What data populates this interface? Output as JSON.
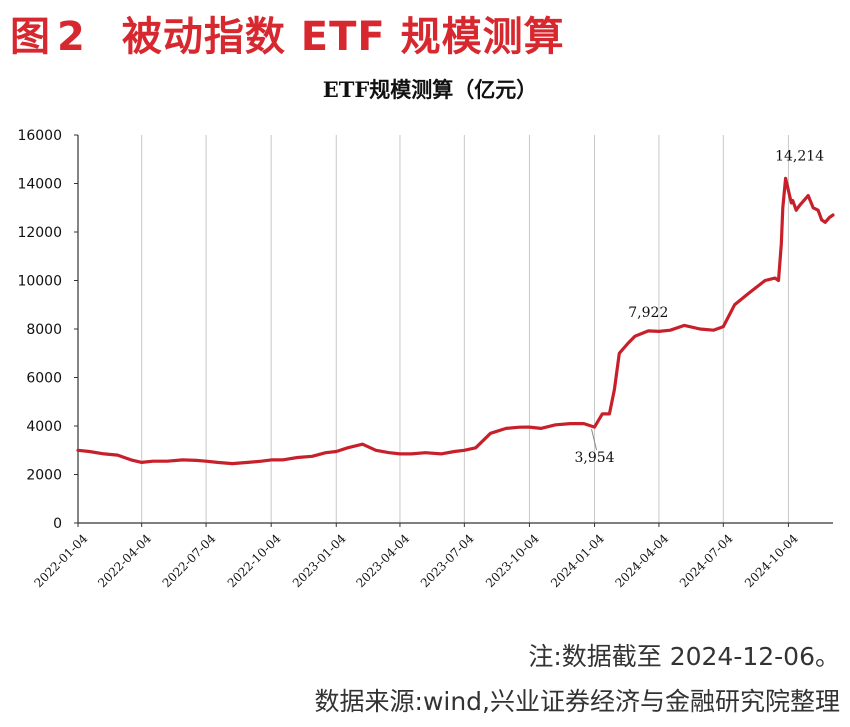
{
  "figure": {
    "label": "图",
    "number": "2",
    "title": "被动指数 ETF 规模测算"
  },
  "note": "注:数据截至 2024-12-06。",
  "source": "数据来源:wind,兴业证券经济与金融研究院整理",
  "chart_data": {
    "type": "line",
    "title": "ETF规模测算（亿元）",
    "xlabel": "",
    "ylabel": "",
    "ylim": [
      0,
      16000
    ],
    "yticks": [
      "0",
      "2000",
      "4000",
      "6000",
      "8000",
      "10000",
      "12000",
      "14000",
      "16000"
    ],
    "x_tick_labels": [
      "2022-01-04",
      "2022-04-04",
      "2022-07-04",
      "2022-10-04",
      "2023-01-04",
      "2023-04-04",
      "2023-07-04",
      "2023-10-04",
      "2024-01-04",
      "2024-04-04",
      "2024-07-04",
      "2024-10-04"
    ],
    "xlim": [
      "2022-01-04",
      "2024-12-06"
    ],
    "grid": "vertical",
    "line_color": "#c8202b",
    "series": [
      {
        "x": [
          "2022-01-04",
          "2022-01-20",
          "2022-02-10",
          "2022-03-01",
          "2022-03-20",
          "2022-04-04",
          "2022-04-20",
          "2022-05-10",
          "2022-06-01",
          "2022-06-20",
          "2022-07-04",
          "2022-07-20",
          "2022-08-10",
          "2022-09-01",
          "2022-09-20",
          "2022-10-04",
          "2022-10-20",
          "2022-11-10",
          "2022-12-01",
          "2022-12-20",
          "2023-01-04",
          "2023-01-20",
          "2023-02-10",
          "2023-03-01",
          "2023-03-20",
          "2023-04-04",
          "2023-04-20",
          "2023-05-10",
          "2023-06-01",
          "2023-06-20",
          "2023-07-04",
          "2023-07-20",
          "2023-08-10",
          "2023-09-01",
          "2023-09-20",
          "2023-10-04",
          "2023-10-20",
          "2023-11-10",
          "2023-12-01",
          "2023-12-20",
          "2024-01-04",
          "2024-01-15",
          "2024-01-25",
          "2024-02-01",
          "2024-02-08",
          "2024-02-20",
          "2024-03-01",
          "2024-03-20",
          "2024-04-04",
          "2024-04-20",
          "2024-05-10",
          "2024-06-01",
          "2024-06-20",
          "2024-07-04",
          "2024-07-20",
          "2024-08-10",
          "2024-09-01",
          "2024-09-15",
          "2024-09-20",
          "2024-09-24",
          "2024-09-26",
          "2024-09-30",
          "2024-10-08",
          "2024-10-10",
          "2024-10-15",
          "2024-10-20",
          "2024-11-01",
          "2024-11-08",
          "2024-11-15",
          "2024-11-20",
          "2024-11-25",
          "2024-12-01",
          "2024-12-06"
        ],
        "values": [
          3000,
          2950,
          2850,
          2800,
          2600,
          2500,
          2550,
          2550,
          2600,
          2580,
          2550,
          2500,
          2450,
          2500,
          2550,
          2600,
          2600,
          2700,
          2750,
          2900,
          2950,
          3100,
          3250,
          3000,
          2900,
          2850,
          2850,
          2900,
          2850,
          2950,
          3000,
          3100,
          3700,
          3900,
          3950,
          3954,
          3900,
          4050,
          4100,
          4100,
          3954,
          4500,
          4500,
          5500,
          7000,
          7400,
          7700,
          7922,
          7900,
          7950,
          8150,
          8000,
          7950,
          8100,
          9000,
          9500,
          10000,
          10100,
          10000,
          11500,
          13000,
          14214,
          13200,
          13300,
          12900,
          13100,
          13500,
          13000,
          12900,
          12500,
          12400,
          12600,
          12700
        ]
      }
    ],
    "annotations": [
      {
        "x": "2024-01-04",
        "y": 3954,
        "text": "3,954"
      },
      {
        "x": "2024-03-20",
        "y": 7922,
        "text": "7,922"
      },
      {
        "x": "2024-09-30",
        "y": 14214,
        "text": "14,214"
      }
    ]
  }
}
